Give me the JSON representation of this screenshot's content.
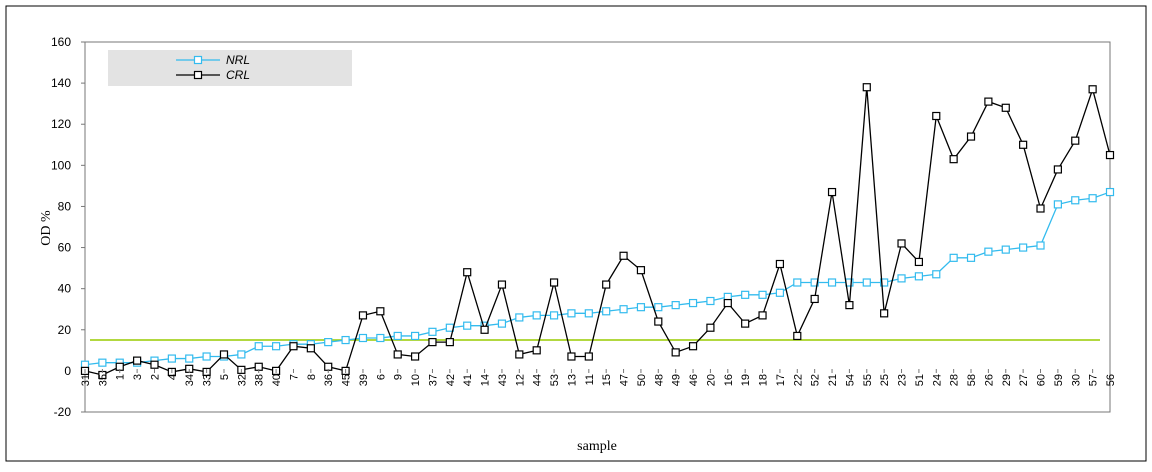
{
  "chart_data": {
    "type": "line",
    "title": "",
    "xlabel": "sample",
    "ylabel": "OD %",
    "ylim": [
      -20,
      160
    ],
    "yticks": [
      -20,
      0,
      20,
      40,
      60,
      80,
      100,
      120,
      140,
      160
    ],
    "grid": false,
    "legend_position": "top-left",
    "categories": [
      "31",
      "35",
      "1",
      "3",
      "2",
      "4",
      "34",
      "33",
      "5",
      "32",
      "38",
      "40",
      "7",
      "8",
      "36",
      "45",
      "39",
      "6",
      "9",
      "10",
      "37",
      "42",
      "41",
      "14",
      "43",
      "12",
      "44",
      "53",
      "13",
      "11",
      "15",
      "47",
      "50",
      "48",
      "49",
      "46",
      "20",
      "16",
      "19",
      "18",
      "17",
      "22",
      "52",
      "21",
      "54",
      "55",
      "25",
      "23",
      "51",
      "24",
      "28",
      "58",
      "26",
      "29",
      "27",
      "60",
      "59",
      "30",
      "57",
      "56"
    ],
    "series": [
      {
        "name": "NRL",
        "color": "#33bbee",
        "marker": "square",
        "values": [
          3,
          4,
          4,
          4,
          5,
          6,
          6,
          7,
          7,
          8,
          12,
          12,
          13,
          13,
          14,
          15,
          16,
          16,
          17,
          17,
          19,
          21,
          22,
          22,
          23,
          26,
          27,
          27,
          28,
          28,
          29,
          30,
          31,
          31,
          32,
          33,
          34,
          36,
          37,
          37,
          38,
          43,
          43,
          43,
          43,
          43,
          43,
          45,
          46,
          47,
          55,
          55,
          58,
          59,
          60,
          61,
          81,
          83,
          84,
          87
        ]
      },
      {
        "name": "CRL",
        "color": "#000000",
        "marker": "square",
        "values": [
          0,
          -2,
          2,
          5,
          3,
          -0.5,
          1,
          -0.5,
          8,
          0.5,
          2,
          0,
          12,
          11,
          2,
          0,
          27,
          29,
          8,
          7,
          14,
          14,
          48,
          20,
          42,
          8,
          10,
          43,
          7,
          7,
          42,
          56,
          49,
          24,
          9,
          12,
          21,
          33,
          23,
          27,
          52,
          17,
          35,
          87,
          32,
          138,
          28,
          62,
          53,
          124,
          103,
          114,
          131,
          128,
          110,
          79,
          98,
          112,
          137,
          105
        ]
      }
    ],
    "reference_line": {
      "y": 15,
      "color": "#99cc00"
    }
  }
}
